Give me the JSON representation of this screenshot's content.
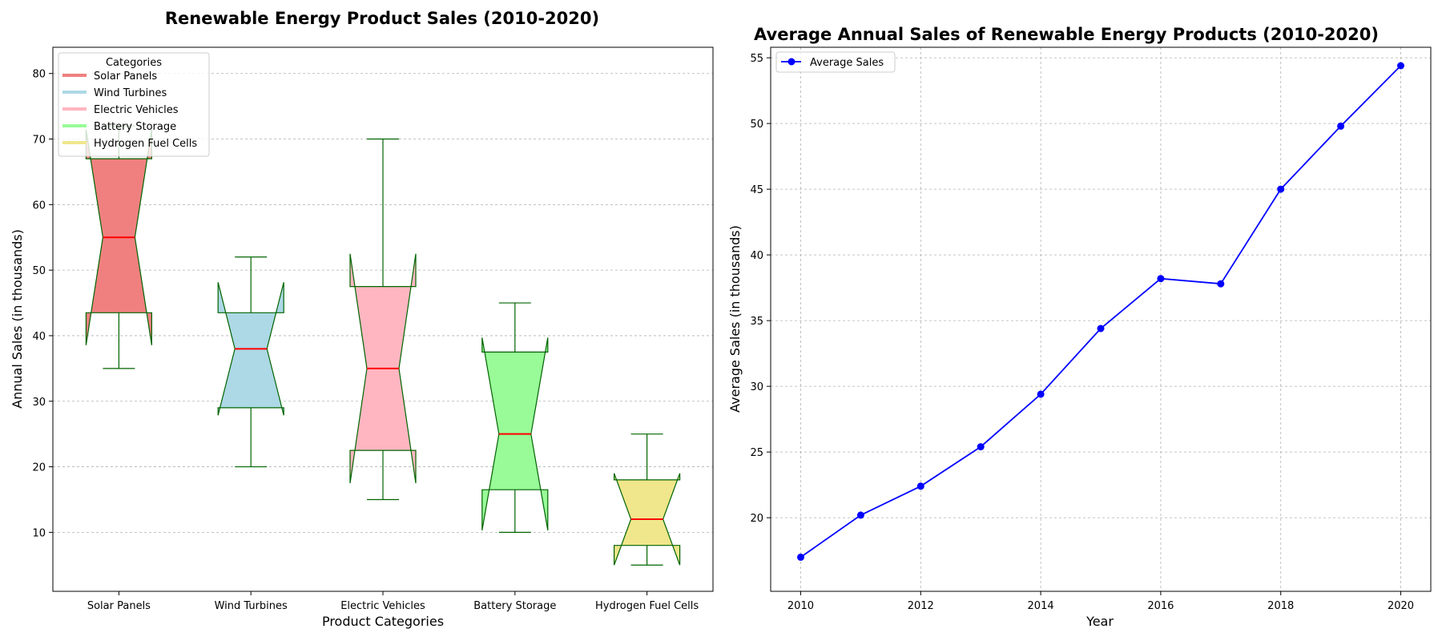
{
  "chart_data": [
    {
      "type": "box",
      "title": "Renewable Energy Product Sales (2010-2020)",
      "xlabel": "Product Categories",
      "ylabel": "Annual Sales (in thousands)",
      "ylim": [
        1,
        84
      ],
      "yticks": [
        "10",
        "20",
        "30",
        "40",
        "50",
        "60",
        "70",
        "80"
      ],
      "grid": "y",
      "notched": true,
      "legend": {
        "title": "Categories",
        "placement": "top-left"
      },
      "categories": [
        "Solar Panels",
        "Wind Turbines",
        "Electric Vehicles",
        "Battery Storage",
        "Hydrogen Fuel Cells"
      ],
      "series": [
        {
          "name": "Solar Panels",
          "color": "#f08080",
          "whisker_low": 35,
          "q1": 43.5,
          "median": 55,
          "q3": 67,
          "whisker_high": 72
        },
        {
          "name": "Wind Turbines",
          "color": "#add8e6",
          "whisker_low": 20,
          "q1": 29,
          "median": 38,
          "q3": 43.5,
          "whisker_high": 52
        },
        {
          "name": "Electric Vehicles",
          "color": "#ffb6c1",
          "whisker_low": 15,
          "q1": 22.5,
          "median": 35,
          "q3": 47.5,
          "whisker_high": 70
        },
        {
          "name": "Battery Storage",
          "color": "#98fb98",
          "whisker_low": 10,
          "q1": 16.5,
          "median": 25,
          "q3": 37.5,
          "whisker_high": 45
        },
        {
          "name": "Hydrogen Fuel Cells",
          "color": "#f0e68c",
          "whisker_low": 5,
          "q1": 8,
          "median": 12,
          "q3": 18,
          "whisker_high": 25
        }
      ],
      "box_edge_color": "#006400",
      "median_color": "#ff0000"
    },
    {
      "type": "line",
      "title": "Average Annual Sales of Renewable Energy Products (2010-2020)",
      "xlabel": "Year",
      "ylabel": "Average Sales (in thousands)",
      "xlim": [
        2009.5,
        2020.5
      ],
      "ylim": [
        14.4,
        55.8
      ],
      "xticks": [
        "2010",
        "2012",
        "2014",
        "2016",
        "2018",
        "2020"
      ],
      "yticks": [
        "20",
        "25",
        "30",
        "35",
        "40",
        "45",
        "50",
        "55"
      ],
      "grid": "both",
      "legend": {
        "placement": "top-left"
      },
      "series": [
        {
          "name": "Average Sales",
          "color": "#0000ff",
          "marker": "circle",
          "x": [
            2010,
            2011,
            2012,
            2013,
            2014,
            2015,
            2016,
            2017,
            2018,
            2019,
            2020
          ],
          "y": [
            17.0,
            20.2,
            22.4,
            25.4,
            29.4,
            34.4,
            38.2,
            37.8,
            45.0,
            49.8,
            54.4
          ]
        }
      ]
    }
  ]
}
